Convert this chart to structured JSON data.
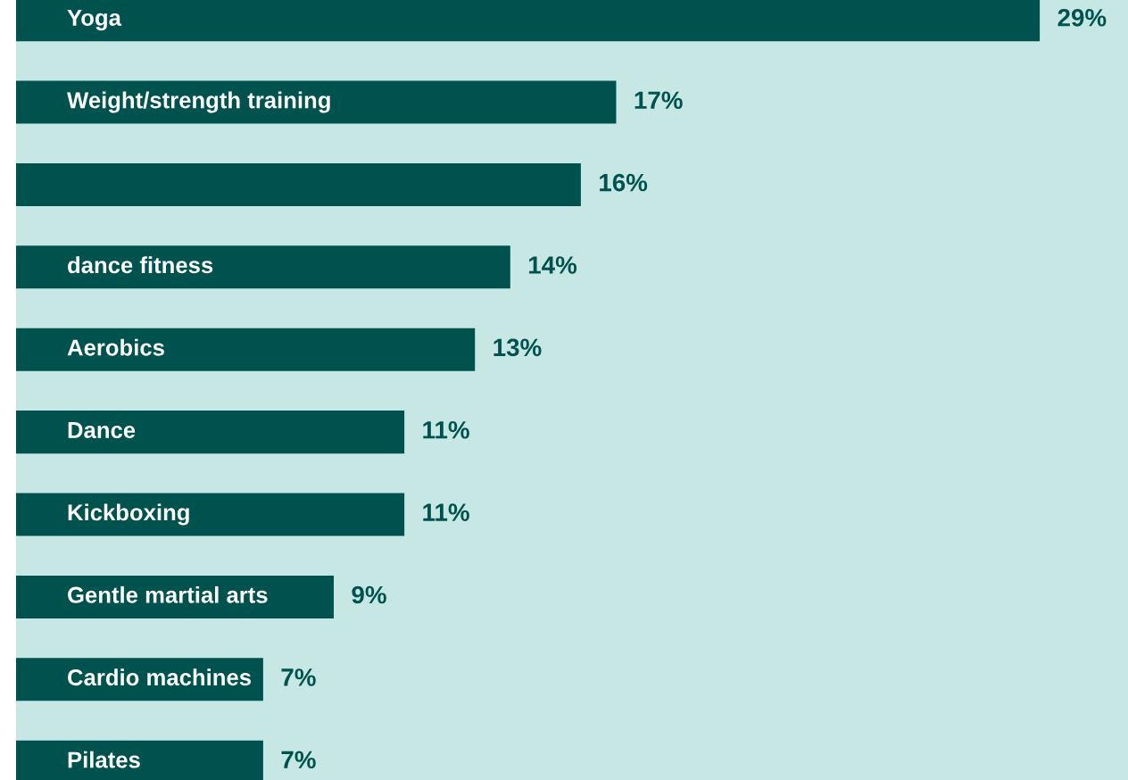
{
  "chart_data": {
    "type": "bar",
    "orientation": "horizontal",
    "categories": [
      "Yoga",
      "Weight/strength training",
      null,
      "dance fitness",
      "Aerobics",
      "Dance",
      "Kickboxing",
      "Gentle martial arts",
      "Cardio machines",
      "Pilates"
    ],
    "values": [
      29,
      17,
      16,
      14,
      13,
      11,
      11,
      9,
      7,
      7
    ],
    "value_labels": [
      "29%",
      "17%",
      "16%",
      "14%",
      "13%",
      "11%",
      "11%",
      "9%",
      "7%",
      "7%"
    ],
    "color": "#00524f",
    "xlim": [
      0,
      31.5
    ]
  }
}
